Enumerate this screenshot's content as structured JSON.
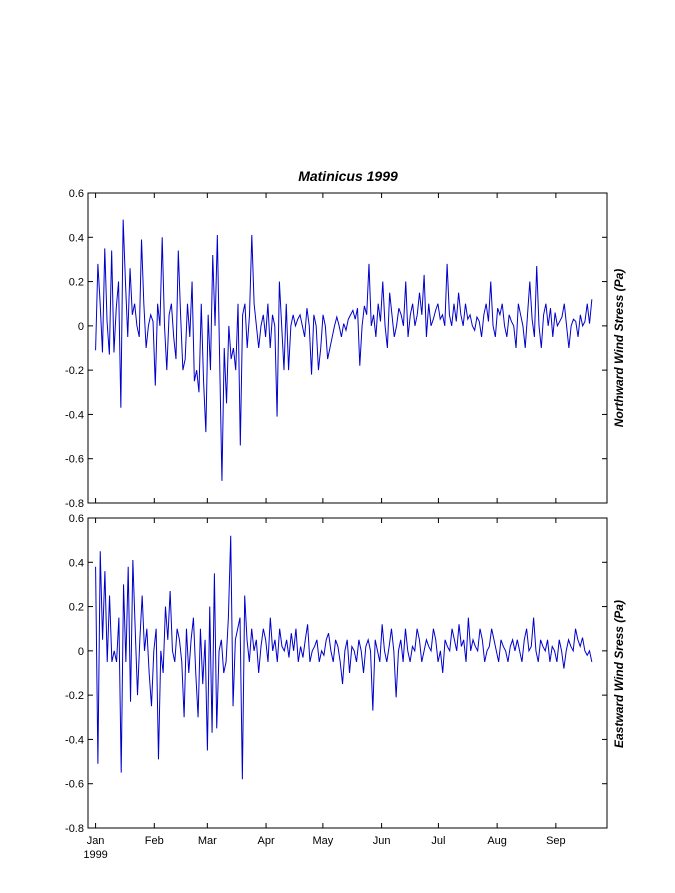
{
  "chart_data": [
    {
      "type": "line",
      "title": "Matinicus   1999",
      "ylabel": "Northward Wind Stress (Pa)",
      "ylim": [
        -0.8,
        0.6
      ],
      "yticks": [
        "0.6",
        "0.4",
        "0.2",
        "0",
        "-0.2",
        "-0.4",
        "-0.6",
        "-0.8"
      ],
      "xlim": [
        "1998-12-28",
        "1999-09-28"
      ],
      "grid": false,
      "series": [
        {
          "color": "#0000cc",
          "x_start": "1999-01-01",
          "x_end": "1999-09-20",
          "values": [
            -0.11,
            0.28,
            0.1,
            -0.12,
            0.35,
            0.02,
            -0.13,
            0.34,
            -0.12,
            0.08,
            0.2,
            -0.37,
            0.48,
            0.2,
            -0.05,
            0.26,
            0.05,
            0.1,
            0.0,
            -0.05,
            0.39,
            0.1,
            -0.1,
            0.0,
            0.05,
            0.02,
            -0.27,
            0.1,
            0.0,
            0.4,
            0.0,
            -0.2,
            0.05,
            0.1,
            -0.05,
            -0.15,
            0.34,
            0.05,
            -0.2,
            -0.15,
            0.1,
            -0.05,
            0.2,
            -0.25,
            -0.2,
            -0.3,
            0.1,
            -0.25,
            -0.48,
            0.05,
            -0.2,
            0.32,
            0.0,
            0.41,
            -0.15,
            -0.7,
            -0.1,
            -0.35,
            0.0,
            -0.15,
            -0.1,
            -0.2,
            0.1,
            -0.54,
            0.05,
            0.1,
            -0.1,
            0.05,
            0.41,
            0.1,
            0.0,
            -0.1,
            0.0,
            0.05,
            -0.05,
            0.1,
            -0.1,
            0.05,
            0.0,
            -0.41,
            0.2,
            0.0,
            -0.2,
            0.1,
            -0.2,
            0.0,
            0.05,
            0.0,
            0.03,
            0.05,
            0.0,
            -0.05,
            0.08,
            0.0,
            -0.22,
            0.05,
            0.0,
            -0.2,
            -0.1,
            0.05,
            0.0,
            -0.15,
            -0.1,
            -0.05,
            0.0,
            0.04,
            0.0,
            -0.05,
            0.01,
            -0.02,
            0.03,
            0.05,
            0.07,
            0.03,
            0.08,
            -0.18,
            0.0,
            0.09,
            0.05,
            0.28,
            0.0,
            0.05,
            -0.05,
            0.1,
            0.02,
            0.2,
            0.0,
            -0.1,
            0.15,
            0.05,
            -0.05,
            0.0,
            0.08,
            0.05,
            0.0,
            0.2,
            -0.05,
            0.05,
            0.1,
            0.0,
            0.05,
            0.15,
            0.05,
            0.23,
            -0.05,
            0.1,
            0.0,
            0.03,
            0.07,
            0.1,
            0.03,
            0.05,
            0.0,
            0.28,
            0.05,
            0.0,
            0.1,
            0.02,
            0.15,
            0.05,
            0.0,
            0.1,
            0.03,
            0.05,
            0.0,
            -0.02,
            0.04,
            0.02,
            -0.05,
            0.05,
            0.1,
            0.02,
            0.2,
            0.0,
            -0.05,
            0.08,
            0.05,
            0.1,
            0.0,
            -0.05,
            0.05,
            0.02,
            0.0,
            -0.1,
            0.1,
            0.05,
            0.0,
            -0.1,
            0.05,
            0.2,
            0.03,
            -0.05,
            0.27,
            0.0,
            -0.1,
            0.05,
            0.1,
            0.0,
            0.08,
            -0.05,
            0.06,
            0.0,
            0.02,
            0.04,
            0.1,
            0.0,
            -0.1,
            0.0,
            0.03,
            0.02,
            -0.05,
            0.05,
            0.0,
            0.02,
            0.1,
            0.01,
            0.12
          ]
        }
      ]
    },
    {
      "type": "line",
      "ylabel": "Eastward Wind Sress (Pa)",
      "ylim": [
        -0.8,
        0.6
      ],
      "yticks": [
        "0.6",
        "0.4",
        "0.2",
        "0",
        "-0.2",
        "-0.4",
        "-0.6",
        "-0.8"
      ],
      "xlim": [
        "1998-12-28",
        "1999-09-28"
      ],
      "xticks": [
        {
          "date": "1999-01-01",
          "label": "Jan",
          "sublabel": "1999"
        },
        {
          "date": "1999-02-01",
          "label": "Feb"
        },
        {
          "date": "1999-03-01",
          "label": "Mar"
        },
        {
          "date": "1999-04-01",
          "label": "Apr"
        },
        {
          "date": "1999-05-01",
          "label": "May"
        },
        {
          "date": "1999-06-01",
          "label": "Jun"
        },
        {
          "date": "1999-07-01",
          "label": "Jul"
        },
        {
          "date": "1999-08-01",
          "label": "Aug"
        },
        {
          "date": "1999-09-01",
          "label": "Sep"
        }
      ],
      "grid": false,
      "series": [
        {
          "color": "#0000cc",
          "x_start": "1999-01-01",
          "x_end": "1999-09-20",
          "values": [
            0.38,
            -0.51,
            0.45,
            0.05,
            0.36,
            -0.05,
            0.25,
            -0.05,
            0.0,
            -0.05,
            0.15,
            -0.55,
            0.3,
            -0.05,
            0.38,
            -0.23,
            0.41,
            0.1,
            -0.2,
            0.05,
            0.25,
            0.0,
            0.1,
            -0.1,
            -0.25,
            0.0,
            0.1,
            -0.49,
            0.0,
            -0.1,
            0.2,
            0.05,
            0.27,
            0.0,
            -0.05,
            0.1,
            0.05,
            -0.05,
            -0.3,
            0.1,
            -0.1,
            0.05,
            0.15,
            -0.1,
            -0.3,
            0.1,
            -0.15,
            0.05,
            -0.45,
            0.2,
            -0.37,
            0.35,
            -0.35,
            0.0,
            0.05,
            -0.1,
            -0.05,
            0.15,
            0.52,
            -0.25,
            0.05,
            0.1,
            0.15,
            -0.58,
            0.25,
            0.05,
            -0.05,
            0.1,
            0.0,
            0.05,
            -0.1,
            0.02,
            0.1,
            0.05,
            -0.05,
            0.15,
            0.0,
            0.05,
            -0.05,
            0.1,
            0.02,
            0.0,
            0.05,
            -0.03,
            0.08,
            0.0,
            0.1,
            -0.05,
            0.02,
            -0.03,
            0.05,
            0.12,
            -0.05,
            0.0,
            0.02,
            0.05,
            -0.05,
            0.0,
            -0.02,
            0.05,
            0.08,
            0.0,
            -0.05,
            0.05,
            0.02,
            -0.05,
            -0.15,
            0.0,
            0.05,
            -0.1,
            0.02,
            0.0,
            -0.05,
            0.05,
            0.0,
            -0.1,
            0.02,
            0.05,
            0.0,
            -0.27,
            0.05,
            0.0,
            -0.05,
            0.12,
            0.0,
            -0.05,
            0.02,
            0.1,
            0.0,
            -0.21,
            0.0,
            0.05,
            -0.05,
            0.1,
            0.0,
            -0.05,
            0.02,
            0.0,
            0.1,
            0.05,
            -0.05,
            0.0,
            0.05,
            0.02,
            0.0,
            0.1,
            0.05,
            -0.05,
            0.0,
            -0.1,
            0.05,
            0.02,
            0.0,
            0.1,
            0.05,
            0.0,
            0.12,
            0.02,
            0.05,
            -0.05,
            0.15,
            0.0,
            0.05,
            0.02,
            0.0,
            0.1,
            0.05,
            -0.05,
            0.0,
            0.02,
            0.1,
            0.05,
            0.0,
            -0.05,
            0.05,
            0.02,
            0.0,
            -0.05,
            0.02,
            0.05,
            0.0,
            0.05,
            0.0,
            -0.05,
            0.05,
            0.1,
            0.0,
            0.02,
            0.15,
            0.0,
            -0.05,
            0.05,
            0.02,
            0.0,
            0.05,
            -0.05,
            0.02,
            0.0,
            -0.05,
            0.05,
            0.0,
            -0.08,
            0.0,
            0.05,
            0.02,
            0.0,
            0.1,
            0.05,
            0.02,
            0.06,
            0.0,
            -0.02,
            0.0,
            -0.05
          ]
        }
      ]
    }
  ]
}
